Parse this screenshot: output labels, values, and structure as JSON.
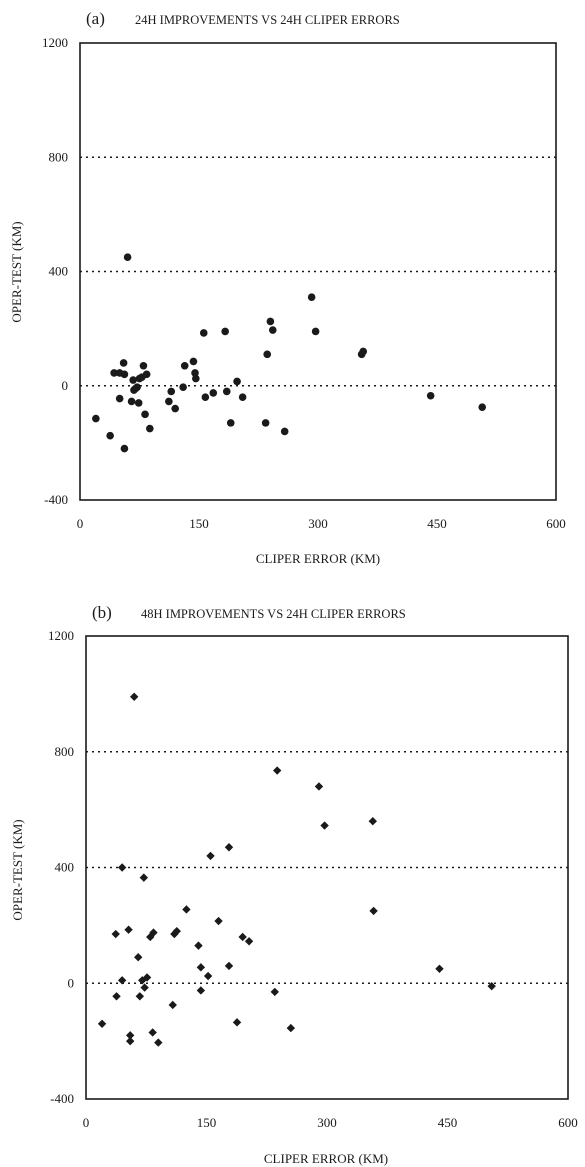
{
  "chart_data": [
    {
      "type": "scatter",
      "panel_label": "(a)",
      "title": "24H IMPROVEMENTS VS 24H CLIPER ERRORS",
      "xlabel": "CLIPER ERROR (KM)",
      "ylabel": "OPER-TEST (KM)",
      "xlim": [
        0,
        600
      ],
      "ylim": [
        -400,
        1200
      ],
      "xticks": [
        "0",
        "150",
        "300",
        "450",
        "600"
      ],
      "yticks": [
        "-400",
        "0",
        "400",
        "800",
        "1200"
      ],
      "gridlines_y": [
        0,
        400,
        800
      ],
      "marker": "circle",
      "points": [
        [
          20,
          -115
        ],
        [
          38,
          -175
        ],
        [
          43,
          45
        ],
        [
          50,
          45
        ],
        [
          50,
          -45
        ],
        [
          56,
          40
        ],
        [
          55,
          80
        ],
        [
          56,
          -220
        ],
        [
          60,
          450
        ],
        [
          65,
          -55
        ],
        [
          67,
          20
        ],
        [
          68,
          -15
        ],
        [
          70,
          -10
        ],
        [
          72,
          -5
        ],
        [
          74,
          -60
        ],
        [
          75,
          25
        ],
        [
          78,
          30
        ],
        [
          80,
          70
        ],
        [
          82,
          -100
        ],
        [
          84,
          40
        ],
        [
          88,
          -150
        ],
        [
          112,
          -55
        ],
        [
          115,
          -20
        ],
        [
          120,
          -80
        ],
        [
          130,
          -5
        ],
        [
          132,
          70
        ],
        [
          143,
          85
        ],
        [
          145,
          45
        ],
        [
          146,
          25
        ],
        [
          156,
          185
        ],
        [
          158,
          -40
        ],
        [
          168,
          -25
        ],
        [
          183,
          190
        ],
        [
          185,
          -20
        ],
        [
          190,
          -130
        ],
        [
          198,
          15
        ],
        [
          205,
          -40
        ],
        [
          234,
          -130
        ],
        [
          236,
          110
        ],
        [
          240,
          225
        ],
        [
          243,
          195
        ],
        [
          258,
          -160
        ],
        [
          292,
          310
        ],
        [
          297,
          190
        ],
        [
          355,
          110
        ],
        [
          357,
          120
        ],
        [
          442,
          -35
        ],
        [
          507,
          -75
        ]
      ],
      "point_color": "#1a1a1a"
    },
    {
      "type": "scatter",
      "panel_label": "(b)",
      "title": "48H IMPROVEMENTS VS 24H CLIPER ERRORS",
      "xlabel": "CLIPER ERROR (KM)",
      "ylabel": "OPER-TEST (KM)",
      "xlim": [
        0,
        600
      ],
      "ylim": [
        -400,
        1200
      ],
      "xticks": [
        "0",
        "150",
        "300",
        "450",
        "600"
      ],
      "yticks": [
        "-400",
        "0",
        "400",
        "800",
        "1200"
      ],
      "gridlines_y": [
        0,
        400,
        800
      ],
      "marker": "diamond",
      "points": [
        [
          20,
          -140
        ],
        [
          37,
          170
        ],
        [
          38,
          -45
        ],
        [
          45,
          10
        ],
        [
          45,
          400
        ],
        [
          53,
          185
        ],
        [
          55,
          -180
        ],
        [
          55,
          -200
        ],
        [
          60,
          990
        ],
        [
          65,
          90
        ],
        [
          67,
          -45
        ],
        [
          70,
          10
        ],
        [
          72,
          365
        ],
        [
          73,
          -15
        ],
        [
          76,
          20
        ],
        [
          80,
          160
        ],
        [
          83,
          -170
        ],
        [
          84,
          175
        ],
        [
          90,
          -205
        ],
        [
          108,
          -75
        ],
        [
          110,
          170
        ],
        [
          113,
          180
        ],
        [
          125,
          255
        ],
        [
          140,
          130
        ],
        [
          143,
          55
        ],
        [
          143,
          -25
        ],
        [
          152,
          25
        ],
        [
          155,
          440
        ],
        [
          165,
          215
        ],
        [
          178,
          470
        ],
        [
          178,
          60
        ],
        [
          188,
          -135
        ],
        [
          195,
          160
        ],
        [
          203,
          145
        ],
        [
          235,
          -30
        ],
        [
          238,
          735
        ],
        [
          255,
          -155
        ],
        [
          290,
          680
        ],
        [
          297,
          545
        ],
        [
          357,
          560
        ],
        [
          358,
          250
        ],
        [
          440,
          50
        ],
        [
          505,
          -10
        ]
      ],
      "point_color": "#1a1a1a"
    }
  ]
}
